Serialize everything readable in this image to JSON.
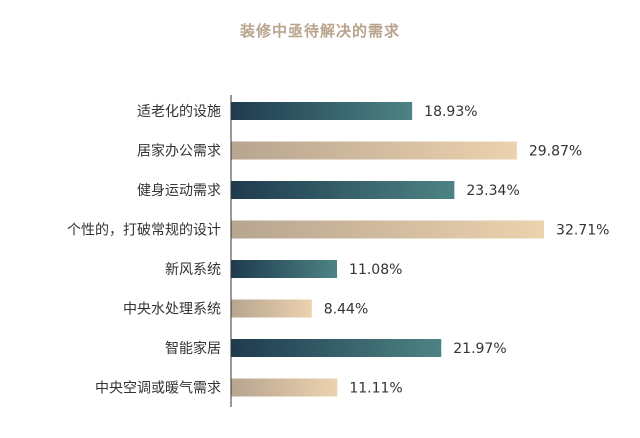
{
  "chart_data": {
    "type": "bar",
    "orientation": "horizontal",
    "title": "装修中亟待解决的需求",
    "xlabel": "",
    "ylabel": "",
    "xlim": [
      0,
      35
    ],
    "grid": false,
    "legend": "none",
    "categories": [
      "适老化的设施",
      "居家办公需求",
      "健身运动需求",
      "个性的，打破常规的设计",
      "新风系统",
      "中央水处理系统",
      "智能家居",
      "中央空调或暖气需求"
    ],
    "values": [
      18.93,
      29.87,
      23.34,
      32.71,
      11.08,
      8.44,
      21.97,
      11.11
    ],
    "value_labels": [
      "18.93%",
      "29.87%",
      "23.34%",
      "32.71%",
      "11.08%",
      "8.44%",
      "21.97%",
      "11.11%"
    ],
    "colors": {
      "dark_start": "#1e3b4e",
      "dark_end": "#4d8384",
      "light_start": "#b7a590",
      "light_end": "#ecd2ae",
      "title": "#b9a48d",
      "axis": "#333333",
      "text": "#333333"
    }
  }
}
